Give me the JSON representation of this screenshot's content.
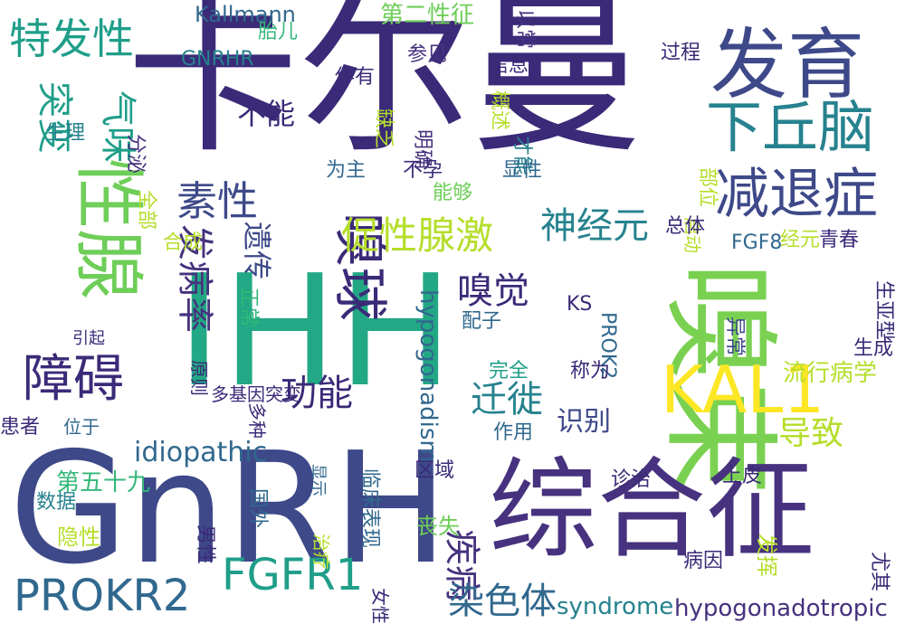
{
  "colors": {
    "background": "#ffffff",
    "palette": [
      "#3b2a78",
      "#46327e",
      "#3e4989",
      "#31688e",
      "#26828e",
      "#1f9e89",
      "#35b779",
      "#6ece58",
      "#b5de2b",
      "#fde725"
    ]
  },
  "words": [
    {
      "text": "卡尔曼",
      "color": "#3b2a78"
    },
    {
      "text": "IHH",
      "color": "#22a884"
    },
    {
      "text": "GnRH",
      "color": "#3e4989"
    },
    {
      "text": "嗅束",
      "color": "#7ad151"
    },
    {
      "text": "综合征",
      "color": "#46327e"
    },
    {
      "text": "发育",
      "color": "#3e4989"
    },
    {
      "text": "性腺",
      "color": "#6ece58"
    },
    {
      "text": "下丘脑",
      "color": "#26828e"
    },
    {
      "text": "减退症",
      "color": "#3e4989"
    },
    {
      "text": "嗅球",
      "color": "#3b2a78"
    },
    {
      "text": "特发性",
      "color": "#1f9e89"
    },
    {
      "text": "障碍",
      "color": "#3b2a78"
    },
    {
      "text": "促性腺激",
      "color": "#b5de2b"
    },
    {
      "text": "KAL1",
      "color": "#fde725"
    },
    {
      "text": "素性",
      "color": "#3e4989"
    },
    {
      "text": "神经元",
      "color": "#26828e"
    },
    {
      "text": "PROKR2",
      "color": "#31688e"
    },
    {
      "text": "FGFR1",
      "color": "#1f9e89"
    },
    {
      "text": "发病率",
      "color": "#46327e"
    },
    {
      "text": "突变",
      "color": "#1f9e89"
    },
    {
      "text": "功能",
      "color": "#3b2a78"
    },
    {
      "text": "嗅觉",
      "color": "#3b2a78"
    },
    {
      "text": "迁徙",
      "color": "#26828e"
    },
    {
      "text": "遗传",
      "color": "#3e4989"
    },
    {
      "text": "疾病",
      "color": "#46327e"
    },
    {
      "text": "染色体",
      "color": "#31688e"
    },
    {
      "text": "导致",
      "color": "#b5de2b"
    },
    {
      "text": "气味",
      "color": "#1f9e89"
    },
    {
      "text": "不能",
      "color": "#3b2a78"
    },
    {
      "text": "识别",
      "color": "#3e4989"
    },
    {
      "text": "idiopathic",
      "color": "#31688e"
    },
    {
      "text": "hypogonadotropic",
      "color": "#46327e"
    },
    {
      "text": "syndrome",
      "color": "#26828e"
    },
    {
      "text": "hypogonadism",
      "color": "#31688e"
    },
    {
      "text": "Kallmann",
      "color": "#31688e"
    },
    {
      "text": "GNRHR",
      "color": "#26828e"
    },
    {
      "text": "第二性征",
      "color": "#6ece58"
    },
    {
      "text": "胎儿",
      "color": "#35b779"
    },
    {
      "text": "以常",
      "color": "#46327e"
    },
    {
      "text": "过程",
      "color": "#3b2a78"
    },
    {
      "text": "参见",
      "color": "#46327e"
    },
    {
      "text": "信息",
      "color": "#3b2a78"
    },
    {
      "text": "伴有",
      "color": "#3b2a78"
    },
    {
      "text": "概述",
      "color": "#b5de2b"
    },
    {
      "text": "生理",
      "color": "#26828e"
    },
    {
      "text": "分泌",
      "color": "#46327e"
    },
    {
      "text": "缺乏",
      "color": "#b5de2b"
    },
    {
      "text": "明确",
      "color": "#46327e"
    },
    {
      "text": "才能",
      "color": "#26828e"
    },
    {
      "text": "为主",
      "color": "#31688e"
    },
    {
      "text": "不孕",
      "color": "#3b2a78"
    },
    {
      "text": "显性",
      "color": "#31688e"
    },
    {
      "text": "能够",
      "color": "#6ece58"
    },
    {
      "text": "部位",
      "color": "#b5de2b"
    },
    {
      "text": "全部",
      "color": "#b5de2b"
    },
    {
      "text": "启动",
      "color": "#b5de2b"
    },
    {
      "text": "总体",
      "color": "#3b2a78"
    },
    {
      "text": "合成",
      "color": "#b5de2b"
    },
    {
      "text": "正常",
      "color": "#35b779"
    },
    {
      "text": "FGF8",
      "color": "#31688e"
    },
    {
      "text": "经元",
      "color": "#b5de2b"
    },
    {
      "text": "青春",
      "color": "#3b2a78"
    },
    {
      "text": "KS",
      "color": "#3b2a78"
    },
    {
      "text": "PROK2",
      "color": "#31688e"
    },
    {
      "text": "配子",
      "color": "#31688e"
    },
    {
      "text": "异常",
      "color": "#3e4989"
    },
    {
      "text": "生亚型",
      "color": "#3b2a78"
    },
    {
      "text": "生成",
      "color": "#3b2a78"
    },
    {
      "text": "引起",
      "color": "#3b2a78"
    },
    {
      "text": "原则",
      "color": "#3b2a78"
    },
    {
      "text": "完全",
      "color": "#1f9e89"
    },
    {
      "text": "称为",
      "color": "#3b2a78"
    },
    {
      "text": "流行病学",
      "color": "#b5de2b"
    },
    {
      "text": "多基因突变",
      "color": "#3b2a78"
    },
    {
      "text": "多种",
      "color": "#3b2a78"
    },
    {
      "text": "患者",
      "color": "#3b2a78"
    },
    {
      "text": "位于",
      "color": "#31688e"
    },
    {
      "text": "作用",
      "color": "#31688e"
    },
    {
      "text": "诊治",
      "color": "#3b2a78"
    },
    {
      "text": "第五十九",
      "color": "#35b779"
    },
    {
      "text": "区域",
      "color": "#3b2a78"
    },
    {
      "text": "显示",
      "color": "#31688e"
    },
    {
      "text": "临床表现",
      "color": "#31688e"
    },
    {
      "text": "上皮",
      "color": "#3b2a78"
    },
    {
      "text": "数据",
      "color": "#26828e"
    },
    {
      "text": "国外",
      "color": "#31688e"
    },
    {
      "text": "丧失",
      "color": "#6ece58"
    },
    {
      "text": "隐性",
      "color": "#b5de2b"
    },
    {
      "text": "男性",
      "color": "#3b2a78"
    },
    {
      "text": "治疗",
      "color": "#b5de2b"
    },
    {
      "text": "病因",
      "color": "#3b2a78"
    },
    {
      "text": "发挥",
      "color": "#b5de2b"
    },
    {
      "text": "尤其",
      "color": "#3b2a78"
    },
    {
      "text": "女性",
      "color": "#3b2a78"
    }
  ]
}
